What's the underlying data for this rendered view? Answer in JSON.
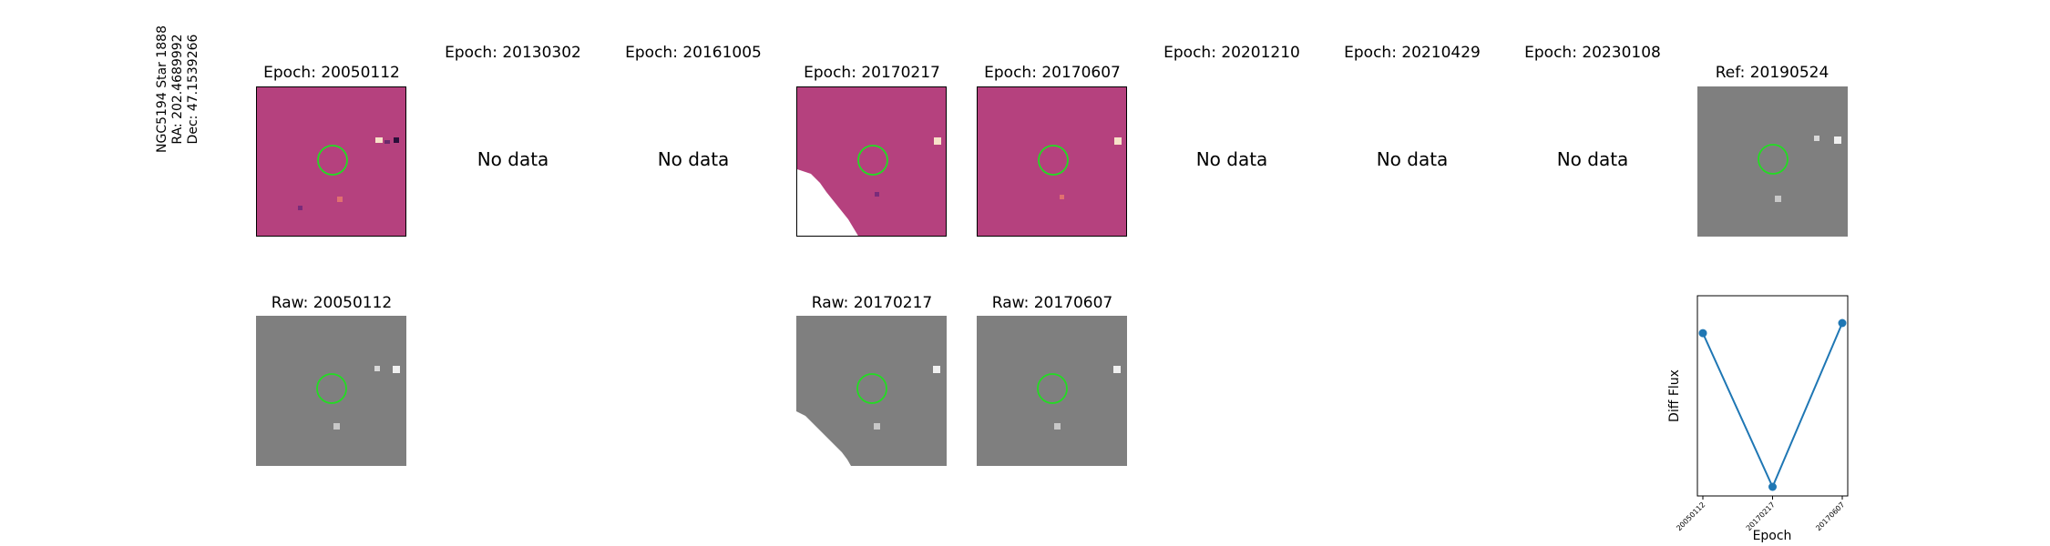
{
  "target": {
    "name": "NGC5194 Star 1888",
    "ra": "RA: 202.4689992",
    "dec": "Dec: 47.1539266"
  },
  "top_row": [
    {
      "title": "Epoch: 20050112",
      "has_data": true
    },
    {
      "title": "Epoch: 20130302",
      "has_data": false,
      "nodata": "No data"
    },
    {
      "title": "Epoch: 20161005",
      "has_data": false,
      "nodata": "No data"
    },
    {
      "title": "Epoch: 20170217",
      "has_data": true
    },
    {
      "title": "Epoch: 20170607",
      "has_data": true
    },
    {
      "title": "Epoch: 20201210",
      "has_data": false,
      "nodata": "No data"
    },
    {
      "title": "Epoch: 20210429",
      "has_data": false,
      "nodata": "No data"
    },
    {
      "title": "Epoch: 20230108",
      "has_data": false,
      "nodata": "No data"
    },
    {
      "title": "Ref: 20190524",
      "has_data": true
    }
  ],
  "bottom_row": [
    {
      "title": "Raw: 20050112"
    },
    {
      "title": "Raw: 20170217"
    },
    {
      "title": "Raw: 20170607"
    }
  ],
  "colors": {
    "diff_bg": "#b5417e",
    "raw_bg": "#7f7f7f",
    "circle": "#22dd22",
    "series": "#1f77b4"
  },
  "chart_data": {
    "type": "line",
    "categories": [
      "20050112",
      "20170217",
      "20170607"
    ],
    "values": [
      0.82,
      0.06,
      0.87
    ],
    "xlabel": "Epoch",
    "ylabel": "Diff Flux",
    "yticks_shown": false,
    "grid": false
  }
}
